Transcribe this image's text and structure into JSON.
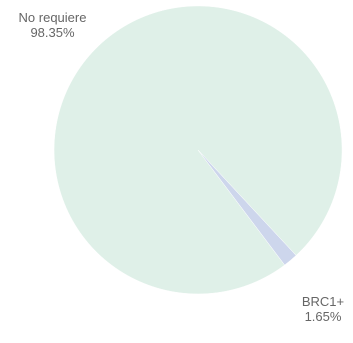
{
  "chart_data": {
    "type": "pie",
    "slices": [
      {
        "label": "No requiere",
        "value": 98.35,
        "value_text": "98.35%",
        "color": "#dff0e8"
      },
      {
        "label": "BRC1+",
        "value": 1.65,
        "value_text": "1.65%",
        "color": "#cdd6ec"
      }
    ]
  }
}
